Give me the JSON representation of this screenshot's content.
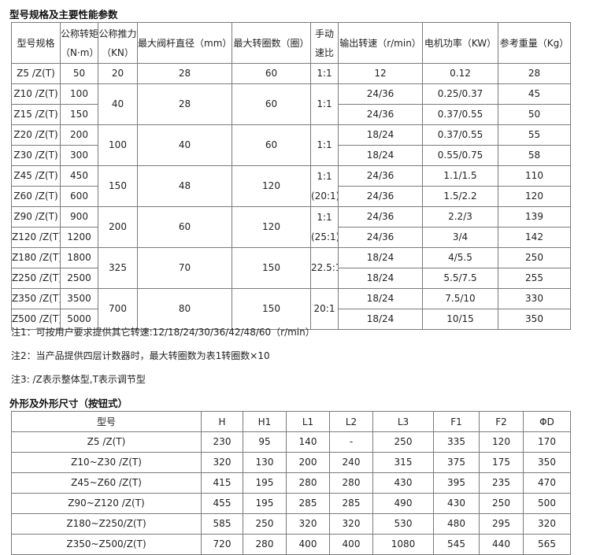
{
  "section1": {
    "title": "型号规格及主要性能参数",
    "headers": [
      "型号规格",
      "公称转矩（N·m）",
      "公称推力（KN）",
      "最大阀杆直径（mm）",
      "最大转圈数（圈）",
      "手动速比",
      "输出转速（r/min）",
      "电机功率（KW）",
      "参考重量（Kg）"
    ],
    "header_lines": {
      "torque": [
        "公称转矩",
        "（N·m）"
      ],
      "thrust": [
        "公称推力",
        "（KN）"
      ],
      "ratio": [
        "手动",
        "速比"
      ]
    },
    "groups": [
      {
        "rows": [
          {
            "model": "Z5 /Z(T)",
            "torque": "50",
            "speed": "12",
            "power": "0.12",
            "weight": "28"
          }
        ],
        "thrust": "20",
        "stem": "28",
        "turns": "60",
        "ratio": [
          "1:1"
        ]
      },
      {
        "rows": [
          {
            "model": "Z10 /Z(T)",
            "torque": "100",
            "speed": "24/36",
            "power": "0.25/0.37",
            "weight": "45"
          },
          {
            "model": "Z15 /Z(T)",
            "torque": "150",
            "speed": "24/36",
            "power": "0.37/0.55",
            "weight": "50"
          }
        ],
        "thrust": "40",
        "stem": "28",
        "turns": "60",
        "ratio": [
          "1:1"
        ]
      },
      {
        "rows": [
          {
            "model": "Z20 /Z(T)",
            "torque": "200",
            "speed": "18/24",
            "power": "0.37/0.55",
            "weight": "55"
          },
          {
            "model": "Z30 /Z(T)",
            "torque": "300",
            "speed": "18/24",
            "power": "0.55/0.75",
            "weight": "58"
          }
        ],
        "thrust": "100",
        "stem": "40",
        "turns": "60",
        "ratio": [
          "1:1"
        ]
      },
      {
        "rows": [
          {
            "model": "Z45 /Z(T)",
            "torque": "450",
            "speed": "24/36",
            "power": "1.1/1.5",
            "weight": "110"
          },
          {
            "model": "Z60 /Z(T)",
            "torque": "600",
            "speed": "24/36",
            "power": "1.5/2.2",
            "weight": "120"
          }
        ],
        "thrust": "150",
        "stem": "48",
        "turns": "120",
        "ratio": [
          "1:1",
          "(20:1)"
        ]
      },
      {
        "rows": [
          {
            "model": "Z90 /Z(T)",
            "torque": "900",
            "speed": "24/36",
            "power": "2.2/3",
            "weight": "139"
          },
          {
            "model": "Z120 /Z(T)",
            "torque": "1200",
            "speed": "24/36",
            "power": "3/4",
            "weight": "142"
          }
        ],
        "thrust": "200",
        "stem": "60",
        "turns": "120",
        "ratio": [
          "1:1",
          "(25:1)"
        ]
      },
      {
        "rows": [
          {
            "model": "Z180 /Z(T)",
            "torque": "1800",
            "speed": "18/24",
            "power": "4/5.5",
            "weight": "250"
          },
          {
            "model": "Z250 /Z(T)",
            "torque": "2500",
            "speed": "18/24",
            "power": "5.5/7.5",
            "weight": "255"
          }
        ],
        "thrust": "325",
        "stem": "70",
        "turns": "150",
        "ratio": [
          "22.5:1"
        ]
      },
      {
        "rows": [
          {
            "model": "Z350 /Z(T)",
            "torque": "3500",
            "speed": "18/24",
            "power": "7.5/10",
            "weight": "330"
          },
          {
            "model": "Z500 /Z(T)",
            "torque": "5000",
            "speed": "18/24",
            "power": "10/15",
            "weight": "350"
          }
        ],
        "thrust": "700",
        "stem": "80",
        "turns": "150",
        "ratio": [
          "20:1"
        ]
      }
    ],
    "notes": [
      "注1：可按用户要求提供其它转速:12/18/24/30/36/42/48/60（r/min）",
      "注2：当产品提供四层计数器时，最大转圈数为表1转圈数×10",
      "注3: /Z表示整体型,T表示调节型"
    ]
  },
  "section2": {
    "title": "外形及外形尺寸（按钮式）",
    "headers": [
      "型号",
      "H",
      "H1",
      "L1",
      "L2",
      "L3",
      "F1",
      "F2",
      "ΦD"
    ],
    "rows": [
      [
        "Z5 /Z(T)",
        "230",
        "95",
        "140",
        "-",
        "250",
        "335",
        "120",
        "170"
      ],
      [
        "Z10~Z30 /Z(T)",
        "320",
        "130",
        "200",
        "240",
        "315",
        "375",
        "175",
        "350"
      ],
      [
        "Z45~Z60 /Z(T)",
        "415",
        "195",
        "280",
        "280",
        "430",
        "395",
        "235",
        "470"
      ],
      [
        "Z90~Z120 /Z(T)",
        "455",
        "195",
        "285",
        "285",
        "490",
        "430",
        "250",
        "500"
      ],
      [
        "Z180~Z250/Z(T)",
        "585",
        "250",
        "320",
        "320",
        "530",
        "480",
        "295",
        "320"
      ],
      [
        "Z350~Z500/Z(T)",
        "720",
        "280",
        "400",
        "400",
        "1080",
        "545",
        "440",
        "565"
      ]
    ]
  }
}
